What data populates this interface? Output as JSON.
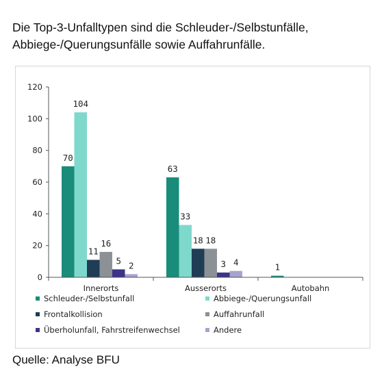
{
  "headline": "Die Top-3-Unfalltypen sind die Schleuder-/Selbstunfälle, Abbiege-/Querungsunfälle sowie Auffahrunfälle.",
  "source": "Quelle: Analyse BFU",
  "chart_data": {
    "type": "bar",
    "categories": [
      "Innerorts",
      "Ausserorts",
      "Autobahn"
    ],
    "ylim": [
      0,
      120
    ],
    "yticks": [
      0,
      20,
      40,
      60,
      80,
      100,
      120
    ],
    "legend_position": "bottom",
    "series": [
      {
        "name": "Schleuder-/Selbstunfall",
        "color": "#1a8c7a",
        "values": [
          70,
          63,
          1
        ]
      },
      {
        "name": "Abbiege-/Querungsunfall",
        "color": "#7fd8cc",
        "values": [
          104,
          33,
          null
        ]
      },
      {
        "name": "Frontalkollision",
        "color": "#1f3e55",
        "values": [
          11,
          18,
          null
        ]
      },
      {
        "name": "Auffahrunfall",
        "color": "#8c9198",
        "values": [
          16,
          18,
          null
        ]
      },
      {
        "name": "Überholunfall, Fahrstreifenwechsel",
        "color": "#3b3489",
        "values": [
          5,
          3,
          null
        ]
      },
      {
        "name": "Andere",
        "color": "#a7a3cf",
        "values": [
          2,
          4,
          null
        ]
      }
    ]
  }
}
